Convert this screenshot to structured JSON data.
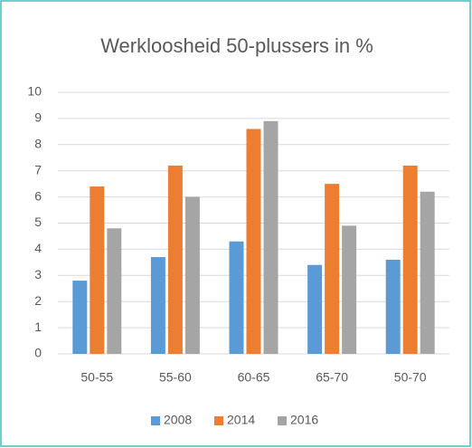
{
  "chart_data": {
    "type": "bar",
    "title": "Werkloosheid 50-plussers in %",
    "categories": [
      "50-55",
      "55-60",
      "60-65",
      "65-70",
      "50-70"
    ],
    "series": [
      {
        "name": "2008",
        "color": "#5b9bd5",
        "values": [
          2.8,
          3.7,
          4.3,
          3.4,
          3.6
        ]
      },
      {
        "name": "2014",
        "color": "#ed7d31",
        "values": [
          6.4,
          7.2,
          8.6,
          6.5,
          7.2
        ]
      },
      {
        "name": "2016",
        "color": "#a5a5a5",
        "values": [
          4.8,
          6.0,
          8.9,
          4.9,
          6.2
        ]
      }
    ],
    "ylim": [
      0,
      10
    ],
    "yticks": [
      0,
      1,
      2,
      3,
      4,
      5,
      6,
      7,
      8,
      9,
      10
    ],
    "grid": true,
    "legend": "bottom"
  }
}
